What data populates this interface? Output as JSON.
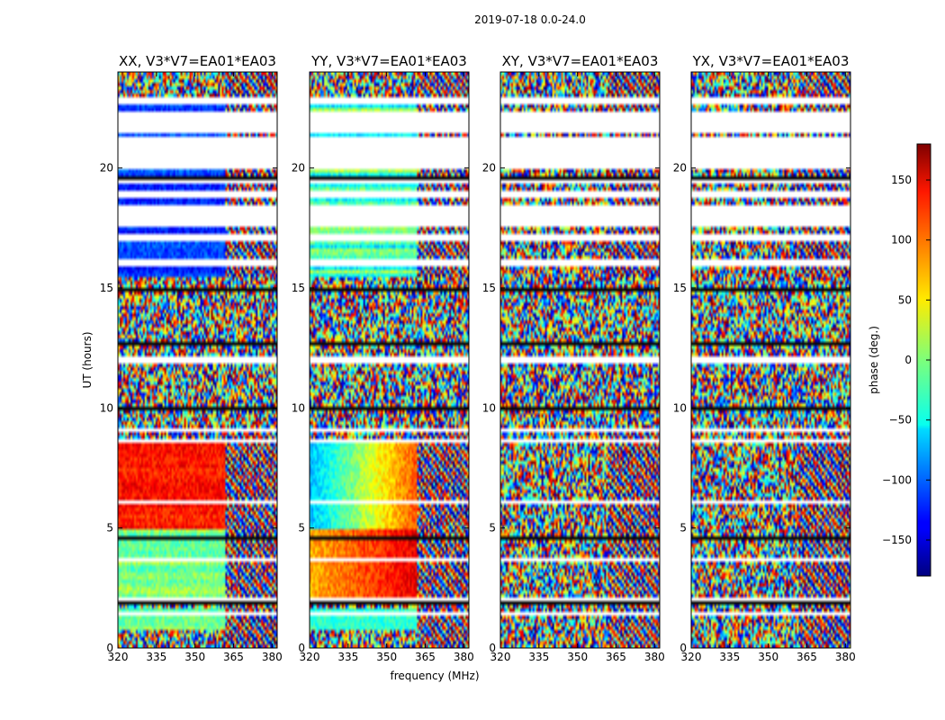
{
  "chart_data": {
    "type": "heatmap",
    "suptitle": "2019-07-18 0.0-24.0",
    "panels": [
      {
        "title": "XX, V3*V7=EA01*EA03",
        "flavor": "auto"
      },
      {
        "title": "YY, V3*V7=EA01*EA03",
        "flavor": "auto2"
      },
      {
        "title": "XY, V3*V7=EA01*EA03",
        "flavor": "cross"
      },
      {
        "title": "YX, V3*V7=EA01*EA03",
        "flavor": "cross"
      }
    ],
    "xlabel": "frequency (MHz)",
    "ylabel": "UT (hours)",
    "xlim": [
      320,
      382
    ],
    "ylim": [
      0,
      24
    ],
    "xticks": [
      320,
      335,
      350,
      365,
      380
    ],
    "yticks": [
      0,
      5,
      10,
      15,
      20
    ],
    "colorbar": {
      "label": "phase (deg.)",
      "range": [
        -180,
        180
      ],
      "ticks": [
        150,
        100,
        50,
        0,
        -50,
        -100,
        -150
      ],
      "tick_labels": [
        "150",
        "100",
        "50",
        "0",
        "−50",
        "−100",
        "−150"
      ],
      "colormap": "jet"
    }
  }
}
